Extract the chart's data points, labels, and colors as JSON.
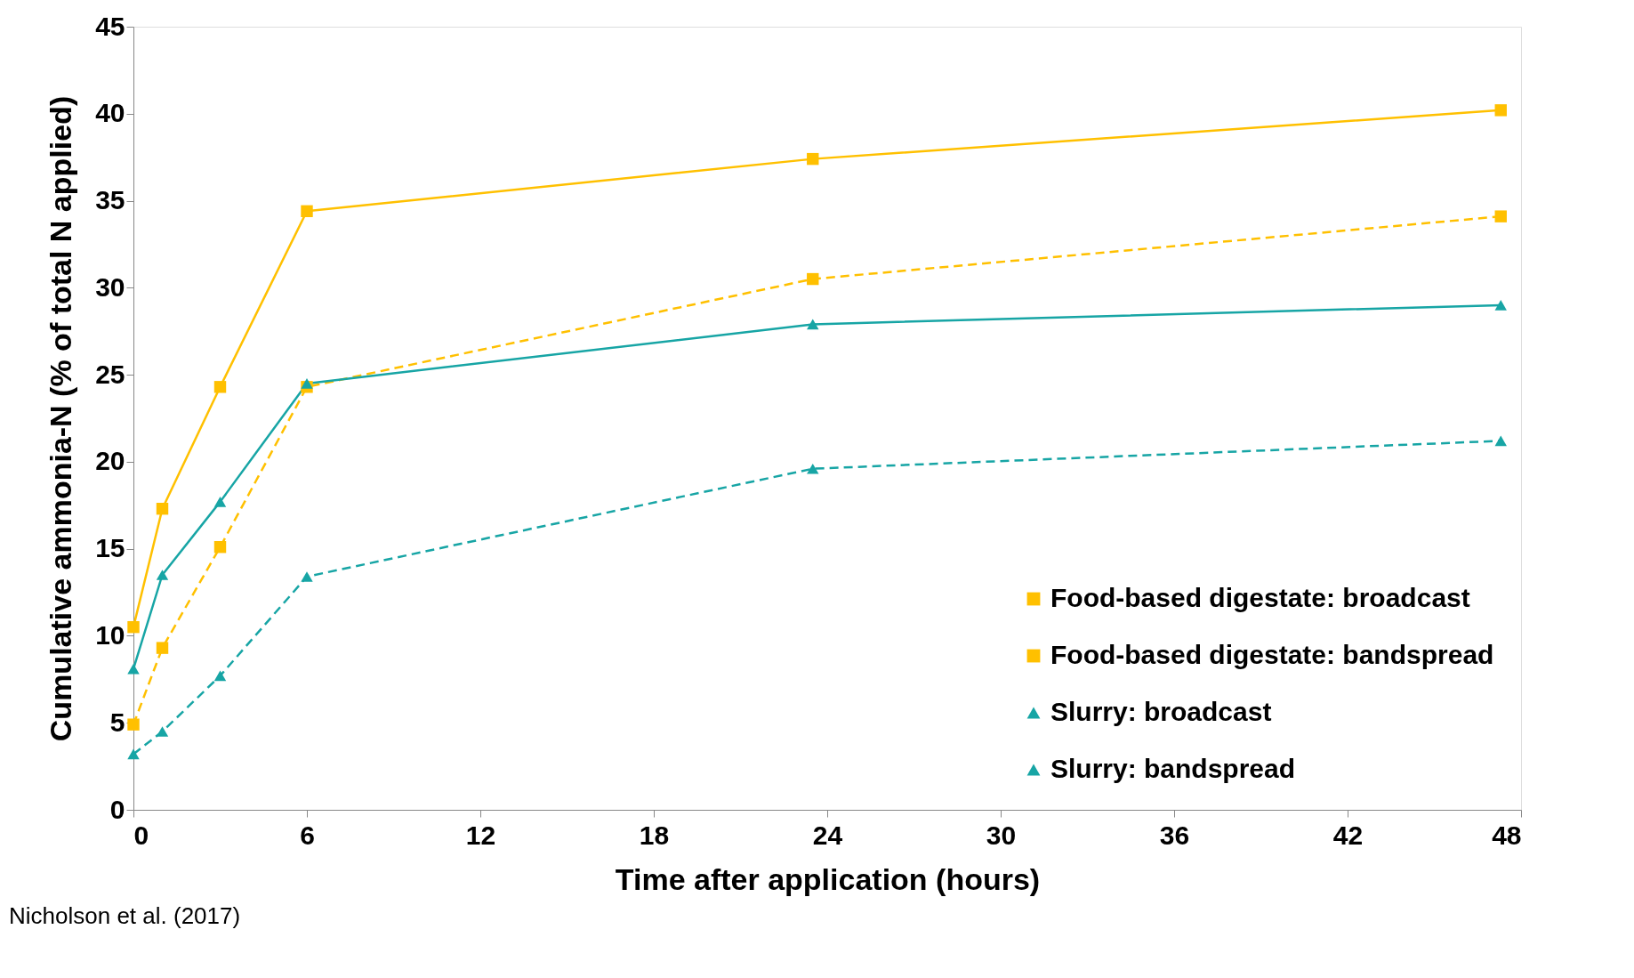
{
  "chart_data": {
    "type": "line",
    "xlabel": "Time after application (hours)",
    "ylabel": "Cumulative ammonia-N (% of total N applied)",
    "x": [
      0,
      1,
      3,
      6,
      23.5,
      47.3
    ],
    "series": [
      {
        "name": "Food-based digestate: broadcast",
        "color": "#ffc000",
        "marker": "square",
        "line_style": "solid",
        "values": [
          10.5,
          17.3,
          24.3,
          34.4,
          37.4,
          40.2
        ]
      },
      {
        "name": "Food-based digestate: bandspread",
        "color": "#ffc000",
        "marker": "square",
        "line_style": "dashed",
        "values": [
          4.9,
          9.3,
          15.1,
          24.3,
          30.5,
          34.1
        ]
      },
      {
        "name": "Slurry: broadcast",
        "color": "#17a5a5",
        "marker": "triangle",
        "line_style": "solid",
        "values": [
          8.1,
          13.5,
          17.7,
          24.5,
          27.9,
          29.0
        ]
      },
      {
        "name": "Slurry: bandspread",
        "color": "#17a5a5",
        "marker": "triangle",
        "line_style": "dashed",
        "values": [
          3.2,
          4.5,
          7.7,
          13.4,
          19.6,
          21.2
        ]
      }
    ],
    "xlim": [
      0,
      48
    ],
    "xticks": [
      0,
      6,
      12,
      18,
      24,
      30,
      36,
      42,
      48
    ],
    "ylim": [
      0,
      45
    ],
    "yticks": [
      0,
      5,
      10,
      15,
      20,
      25,
      30,
      35,
      40,
      45
    ],
    "grid": false,
    "legend": "bottom right",
    "annotations": [
      "Nicholson et al. (2017)"
    ]
  }
}
